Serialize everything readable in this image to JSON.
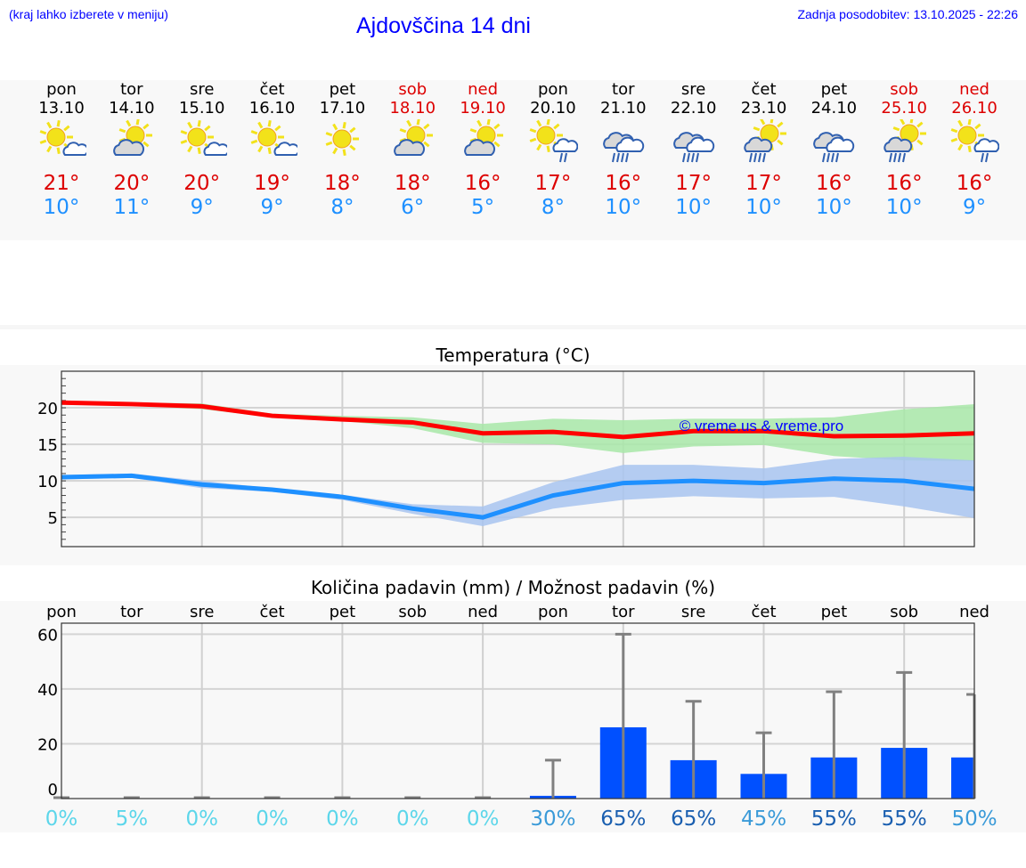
{
  "header": {
    "hint": "(kraj lahko izberete v meniju)",
    "title": "Ajdovščina 14 dni",
    "updated": "Zadnja posodobitev: 13.10.2025 - 22:26"
  },
  "days": [
    {
      "name": "pon",
      "date": "13.10",
      "icon": "sun-cloud",
      "max": "21°",
      "min": "10°",
      "weekend": false
    },
    {
      "name": "tor",
      "date": "14.10",
      "icon": "sun-grey-cloud",
      "max": "20°",
      "min": "11°",
      "weekend": false
    },
    {
      "name": "sre",
      "date": "15.10",
      "icon": "sun-cloud",
      "max": "20°",
      "min": "9°",
      "weekend": false
    },
    {
      "name": "čet",
      "date": "16.10",
      "icon": "sun-cloud",
      "max": "19°",
      "min": "9°",
      "weekend": false
    },
    {
      "name": "pet",
      "date": "17.10",
      "icon": "sun",
      "max": "18°",
      "min": "8°",
      "weekend": false
    },
    {
      "name": "sob",
      "date": "18.10",
      "icon": "sun-grey-cloud",
      "max": "18°",
      "min": "6°",
      "weekend": true
    },
    {
      "name": "ned",
      "date": "19.10",
      "icon": "sun-grey-cloud",
      "max": "16°",
      "min": "5°",
      "weekend": true
    },
    {
      "name": "pon",
      "date": "20.10",
      "icon": "sun-cloud-rain",
      "max": "17°",
      "min": "8°",
      "weekend": false
    },
    {
      "name": "tor",
      "date": "21.10",
      "icon": "clouds-rain",
      "max": "16°",
      "min": "10°",
      "weekend": false
    },
    {
      "name": "sre",
      "date": "22.10",
      "icon": "clouds-rain",
      "max": "17°",
      "min": "10°",
      "weekend": false
    },
    {
      "name": "čet",
      "date": "23.10",
      "icon": "sun-grey-cloud-rain",
      "max": "17°",
      "min": "10°",
      "weekend": false
    },
    {
      "name": "pet",
      "date": "24.10",
      "icon": "clouds-rain",
      "max": "16°",
      "min": "10°",
      "weekend": false
    },
    {
      "name": "sob",
      "date": "25.10",
      "icon": "sun-grey-cloud-rain",
      "max": "16°",
      "min": "10°",
      "weekend": true
    },
    {
      "name": "ned",
      "date": "26.10",
      "icon": "sun-cloud-rain",
      "max": "16°",
      "min": "9°",
      "weekend": true
    }
  ],
  "colors": {
    "max": "#ff0000",
    "min": "#1e90ff",
    "maxBand": "#a8e8a8",
    "minBand": "#a8c4f0",
    "bar": "#0050ff",
    "whisker": "#808080"
  },
  "chart_data": [
    {
      "type": "line",
      "title": "Temperatura (°C)",
      "ylim": [
        1,
        25
      ],
      "yticks": [
        "5",
        "10",
        "15",
        "20"
      ],
      "watermark": "© vreme.us & vreme.pro",
      "series": [
        {
          "name": "max",
          "values": [
            20.7,
            20.5,
            20.2,
            18.9,
            18.4,
            18.0,
            16.5,
            16.7,
            16.0,
            16.8,
            16.8,
            16.1,
            16.2,
            16.5
          ],
          "band_low": [
            20.5,
            20.3,
            19.8,
            18.7,
            18.2,
            17.2,
            15.2,
            15.0,
            13.8,
            14.7,
            14.9,
            13.4,
            12.8,
            12.7
          ],
          "band_high": [
            20.9,
            20.7,
            20.6,
            19.2,
            18.9,
            18.7,
            17.8,
            18.5,
            18.3,
            18.5,
            18.5,
            18.7,
            19.8,
            20.5
          ]
        },
        {
          "name": "min",
          "values": [
            10.5,
            10.7,
            9.5,
            8.8,
            7.8,
            6.2,
            5.0,
            8.0,
            9.7,
            10.0,
            9.7,
            10.3,
            10.0,
            8.9
          ],
          "band_low": [
            10.2,
            10.4,
            9.0,
            8.5,
            7.4,
            5.5,
            3.8,
            6.2,
            7.4,
            7.9,
            7.6,
            7.8,
            6.5,
            4.9
          ],
          "band_high": [
            10.8,
            11.0,
            10.0,
            9.0,
            8.1,
            6.8,
            6.5,
            9.8,
            12.2,
            12.2,
            11.7,
            13.0,
            13.3,
            12.8
          ]
        }
      ]
    },
    {
      "type": "bar",
      "title": "Količina padavin (mm) / Možnost padavin (%)",
      "ylim": [
        0,
        64
      ],
      "yticks": [
        "0",
        "20",
        "40",
        "60"
      ],
      "categories": [
        "pon",
        "tor",
        "sre",
        "čet",
        "pet",
        "sob",
        "ned",
        "pon",
        "tor",
        "sre",
        "čet",
        "pet",
        "sob",
        "ned"
      ],
      "values": [
        0,
        0,
        0,
        0,
        0,
        0,
        0,
        1,
        26,
        14,
        9,
        15,
        18.5,
        15
      ],
      "max_values": [
        0,
        0,
        0,
        0,
        0,
        0,
        0,
        14,
        60,
        35.5,
        24,
        39,
        46,
        38
      ],
      "probability": [
        "0%",
        "5%",
        "0%",
        "0%",
        "0%",
        "0%",
        "0%",
        "30%",
        "65%",
        "65%",
        "45%",
        "55%",
        "55%",
        "50%"
      ]
    }
  ]
}
